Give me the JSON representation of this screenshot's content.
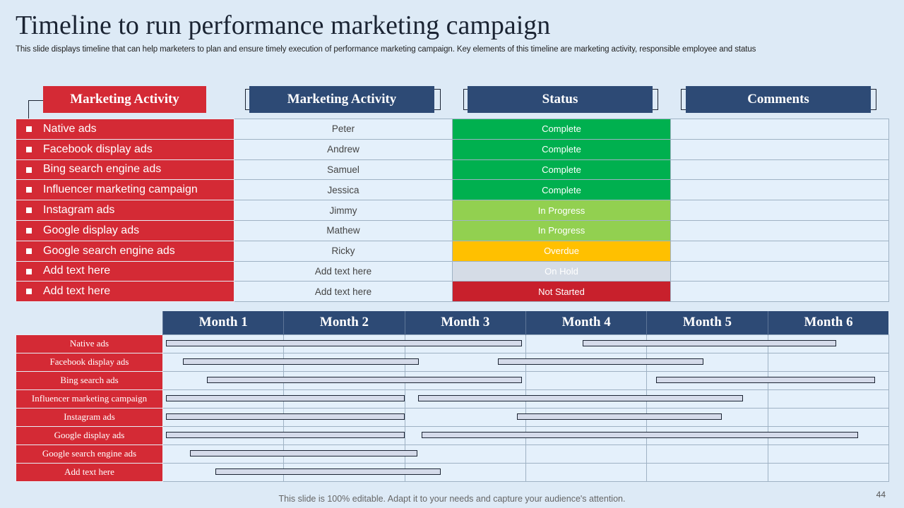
{
  "title": "Timeline to run performance marketing campaign",
  "subtitle": "This slide displays timeline that can help marketers to plan and ensure timely execution of performance marketing campaign. Key elements of this timeline are marketing activity, responsible employee and status",
  "headers": [
    "Marketing Activity",
    "Marketing Activity",
    "Status",
    "Comments"
  ],
  "rows": [
    {
      "activity": "Native ads",
      "employee": "Peter",
      "status": "Complete",
      "status_color": "#00b04f",
      "status_text_color": "#ffffff"
    },
    {
      "activity": "Facebook display ads",
      "employee": "Andrew",
      "status": "Complete",
      "status_color": "#00b04f",
      "status_text_color": "#ffffff"
    },
    {
      "activity": "Bing search engine ads",
      "employee": "Samuel",
      "status": "Complete",
      "status_color": "#00b04f",
      "status_text_color": "#ffffff"
    },
    {
      "activity": "Influencer  marketing campaign",
      "employee": "Jessica",
      "status": "Complete",
      "status_color": "#00b04f",
      "status_text_color": "#ffffff"
    },
    {
      "activity": "Instagram ads",
      "employee": "Jimmy",
      "status": "In Progress",
      "status_color": "#92d050",
      "status_text_color": "#ffffff"
    },
    {
      "activity": "Google display ads",
      "employee": "Mathew",
      "status": "In Progress",
      "status_color": "#92d050",
      "status_text_color": "#ffffff"
    },
    {
      "activity": "Google search engine ads",
      "employee": "Ricky",
      "status": "Overdue",
      "status_color": "#ffc000",
      "status_text_color": "#ffffff"
    },
    {
      "activity": "Add text here",
      "employee": "Add text here",
      "status": "On Hold",
      "status_color": "#d5dce6",
      "status_text_color": "#ffffff"
    },
    {
      "activity": "Add text here",
      "employee": "Add text here",
      "status": "Not Started",
      "status_color": "#c8202c",
      "status_text_color": "#ffffff"
    }
  ],
  "months": [
    "Month 1",
    "Month 2",
    "Month 3",
    "Month 4",
    "Month 5",
    "Month 6"
  ],
  "gantt": [
    {
      "label": "Native ads",
      "bars": [
        [
          0.03,
          2.97
        ],
        [
          3.47,
          5.57
        ]
      ]
    },
    {
      "label": "Facebook display ads",
      "bars": [
        [
          0.17,
          2.12
        ],
        [
          2.77,
          4.47
        ]
      ]
    },
    {
      "label": "Bing search ads",
      "bars": [
        [
          0.37,
          2.97
        ],
        [
          4.08,
          5.89
        ]
      ]
    },
    {
      "label": "Influencer marketing campaign",
      "bars": [
        [
          0.03,
          2.0
        ],
        [
          2.11,
          4.8
        ]
      ]
    },
    {
      "label": "Instagram ads",
      "bars": [
        [
          0.03,
          2.0
        ],
        [
          2.93,
          4.62
        ]
      ]
    },
    {
      "label": "Google display ads",
      "bars": [
        [
          0.03,
          2.0
        ],
        [
          2.14,
          5.75
        ]
      ]
    },
    {
      "label": "Google search engine ads",
      "bars": [
        [
          0.23,
          2.11
        ]
      ]
    },
    {
      "label": "Add text here",
      "bars": [
        [
          0.44,
          2.3
        ]
      ]
    }
  ],
  "colors": {
    "accent_red": "#d42a35",
    "header_blue": "#2d4a75",
    "row_bg": "#e4f0fb"
  },
  "footer": "This slide is 100% editable. Adapt it to your needs and capture your audience's attention.",
  "page_number": "44"
}
